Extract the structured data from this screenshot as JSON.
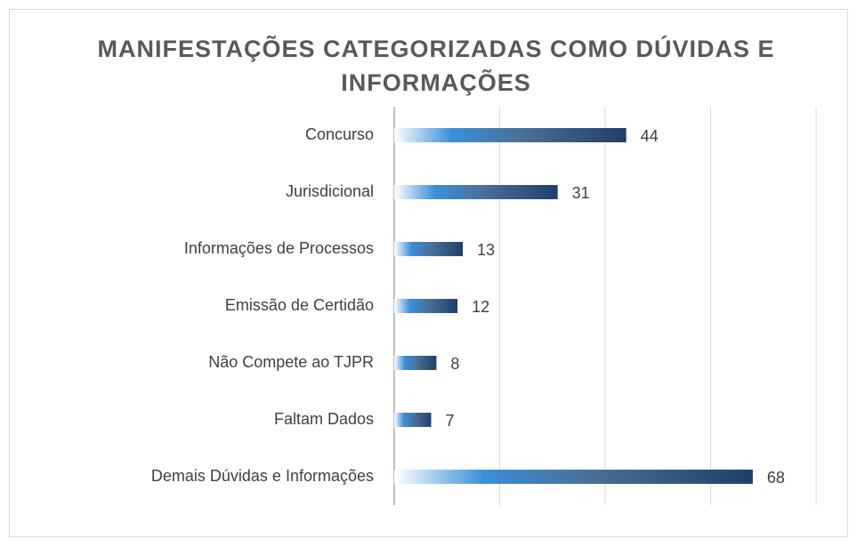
{
  "chart_data": {
    "type": "barh",
    "title": "MANIFESTAÇÕES CATEGORIZADAS COMO DÚVIDAS E INFORMAÇÕES",
    "categories": [
      "Concurso",
      "Jurisdicional",
      "Informações de Processos",
      "Emissão de Certidão",
      "Não Compete ao TJPR",
      "Faltam Dados",
      "Demais Dúvidas e Informações"
    ],
    "values": [
      44,
      31,
      13,
      12,
      8,
      7,
      68
    ],
    "color": "#1f3f6b",
    "xlim": [
      0,
      80
    ],
    "xticks": [
      0,
      20,
      40,
      60,
      80
    ],
    "grid": true
  }
}
